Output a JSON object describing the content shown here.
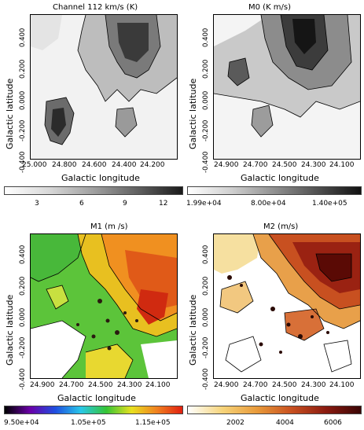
{
  "panels": [
    {
      "title": "Channel 112 km/s  (K)",
      "xlabel": "Galactic longitude",
      "ylabel": "Galactic latitude",
      "xticks": [
        "25.000",
        "24.800",
        "24.600",
        "24.400",
        "24.200"
      ],
      "yticks": [
        "0.400",
        "0.200",
        "0.000",
        "-0.200",
        "-0.400"
      ],
      "colorbar_ticks": [
        "3",
        "6",
        "9",
        "12"
      ]
    },
    {
      "title": "M0  (K m/s)",
      "xlabel": "Galactic longitude",
      "ylabel": "Galactic latitude",
      "xticks": [
        "24.900",
        "24.700",
        "24.500",
        "24.300",
        "24.100"
      ],
      "yticks": [
        "0.400",
        "0.200",
        "0.000",
        "-0.200",
        "-0.400"
      ],
      "colorbar_ticks": [
        "1.99e+04",
        "8.00e+04",
        "1.40e+05"
      ]
    },
    {
      "title": "M1  (m /s)",
      "xlabel": "Galactic longitude",
      "ylabel": "Galactic latitude",
      "xticks": [
        "24.900",
        "24.700",
        "24.500",
        "24.300",
        "24.100"
      ],
      "yticks": [
        "0.400",
        "0.200",
        "0.000",
        "-0.200",
        "-0.400"
      ],
      "colorbar_ticks": [
        "9.50e+04",
        "1.05e+05",
        "1.15e+05"
      ]
    },
    {
      "title": "M2  (m/s)",
      "xlabel": "Galactic longitude",
      "ylabel": "Galactic latitude",
      "xticks": [
        "24.900",
        "24.700",
        "24.500",
        "24.300",
        "24.100"
      ],
      "yticks": [
        "0.400",
        "0.200",
        "0.000",
        "-0.200",
        "-0.400"
      ],
      "colorbar_ticks": [
        "2002",
        "4004",
        "6006"
      ]
    }
  ],
  "colors": {
    "gray_low": "#ffffff",
    "gray_high": "#1a1a1a",
    "m1_scale": [
      "#000000",
      "#6a00a8",
      "#1f4fe0",
      "#29c7e8",
      "#35c435",
      "#e8e020",
      "#f08020",
      "#e02010"
    ],
    "m2_scale": [
      "#ffffff",
      "#f6d47a",
      "#e89a3a",
      "#c85020",
      "#8a1a10",
      "#3a0505"
    ]
  }
}
